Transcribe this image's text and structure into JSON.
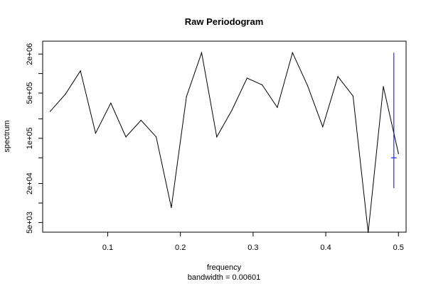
{
  "chart_data": {
    "type": "line",
    "title": "Raw Periodogram",
    "xlabel": "frequency",
    "sublabel": "bandwidth = 0.00601",
    "ylabel": "spectrum",
    "y_scale": "log",
    "xlim": [
      0.0105,
      0.5105
    ],
    "ylim_log10": [
      3.55,
      6.5
    ],
    "x_ticks": [
      0.1,
      0.2,
      0.3,
      0.4,
      0.5
    ],
    "x_tick_labels": [
      "0.1",
      "0.2",
      "0.3",
      "0.4",
      "0.5"
    ],
    "y_ticks_major": [
      5000,
      20000,
      100000,
      500000,
      2000000
    ],
    "y_tick_labels": [
      "5e+03",
      "2e+04",
      "1e+05",
      "5e+05",
      "2e+06"
    ],
    "y_ticks_minor": [
      10000,
      50000,
      200000,
      1000000
    ],
    "series": [
      {
        "color": "#000000",
        "x": [
          0.0208,
          0.0417,
          0.0625,
          0.0833,
          0.1042,
          0.125,
          0.1458,
          0.1667,
          0.1875,
          0.2083,
          0.2292,
          0.25,
          0.2708,
          0.2917,
          0.3125,
          0.3333,
          0.3542,
          0.375,
          0.3958,
          0.4167,
          0.4375,
          0.4583,
          0.4792,
          0.5
        ],
        "y": [
          260000,
          480000,
          1100000,
          120000,
          350000,
          105000,
          190000,
          105000,
          8500,
          440000,
          2100000,
          105000,
          270000,
          850000,
          670000,
          300000,
          2100000,
          650000,
          150000,
          900000,
          450000,
          3500,
          630000,
          58000
        ]
      }
    ],
    "ci_bar": {
      "color": "#0000ff",
      "x": 0.4937,
      "center": 50000,
      "lower": 17000,
      "upper": 2100000
    }
  }
}
